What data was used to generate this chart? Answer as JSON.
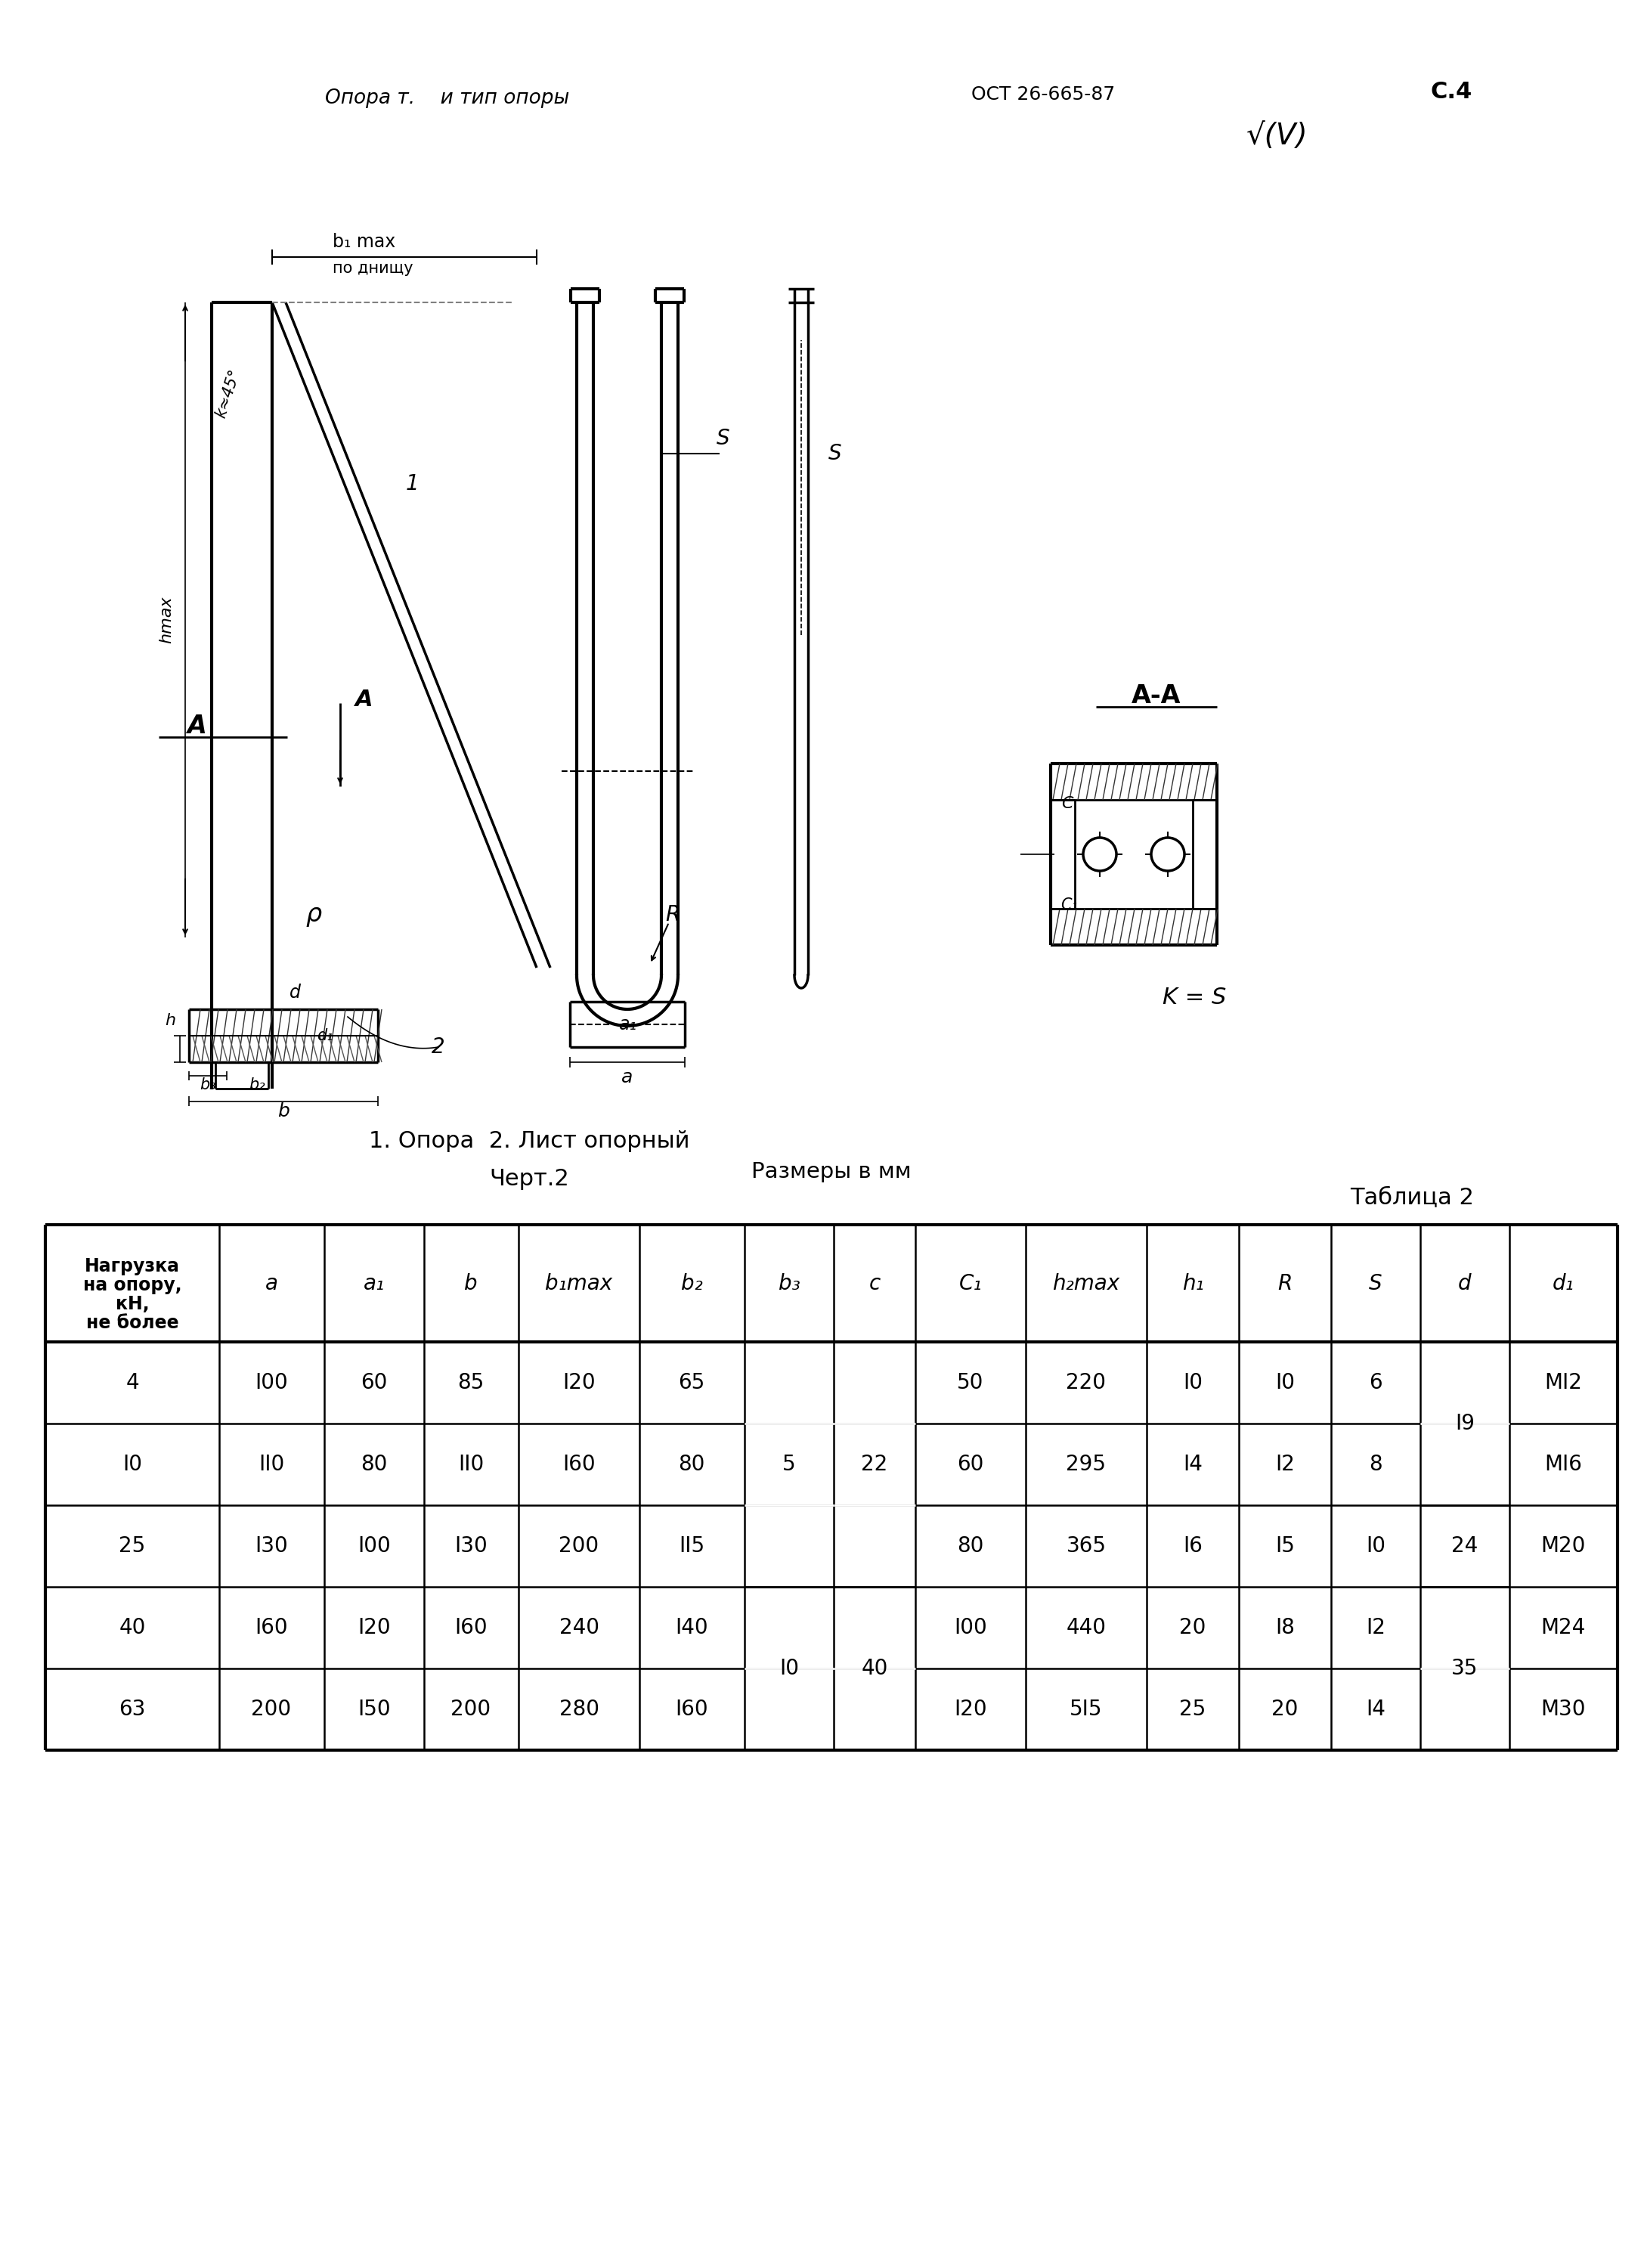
{
  "bg_color": "#ffffff",
  "header_left": "Опора т.    и тип опоры",
  "header_right": "ОСТ 26-665-87",
  "page_num": "С.4",
  "check_mark": "√(V)",
  "figure_caption": "1. Опора  2. Лист опорный",
  "chert_label": "Черт.2",
  "table_label": "Таблица 2",
  "size_label": "Размеры в мм",
  "AA_label": "А-А",
  "KS_label": "K = S",
  "rows": [
    {
      "load": "4",
      "a": "I00",
      "a1": "60",
      "b": "85",
      "b1max": "I20",
      "b2": "65",
      "b3": "",
      "c": "",
      "C1": "50",
      "h2max": "220",
      "h1": "I0",
      "R": "I0",
      "S": "6",
      "d": "",
      "d1": "MI2"
    },
    {
      "load": "I0",
      "a": "II0",
      "a1": "80",
      "b": "II0",
      "b1max": "I60",
      "b2": "80",
      "b3": "5",
      "c": "22",
      "C1": "60",
      "h2max": "295",
      "h1": "I4",
      "R": "I2",
      "S": "8",
      "d": "I9",
      "d1": "MI6"
    },
    {
      "load": "25",
      "a": "I30",
      "a1": "I00",
      "b": "I30",
      "b1max": "200",
      "b2": "II5",
      "b3": "",
      "c": "",
      "C1": "80",
      "h2max": "365",
      "h1": "I6",
      "R": "I5",
      "S": "I0",
      "d": "24",
      "d1": "M20"
    },
    {
      "load": "40",
      "a": "I60",
      "a1": "I20",
      "b": "I60",
      "b1max": "240",
      "b2": "I40",
      "b3": "I0",
      "c": "40",
      "C1": "I00",
      "h2max": "440",
      "h1": "20",
      "R": "I8",
      "S": "I2",
      "d": "",
      "d1": "M24"
    },
    {
      "load": "63",
      "a": "200",
      "a1": "I50",
      "b": "200",
      "b1max": "280",
      "b2": "I60",
      "b3": "",
      "c": "",
      "C1": "I20",
      "h2max": "5I5",
      "h1": "25",
      "R": "20",
      "S": "I4",
      "d": "35",
      "d1": "M30"
    }
  ]
}
